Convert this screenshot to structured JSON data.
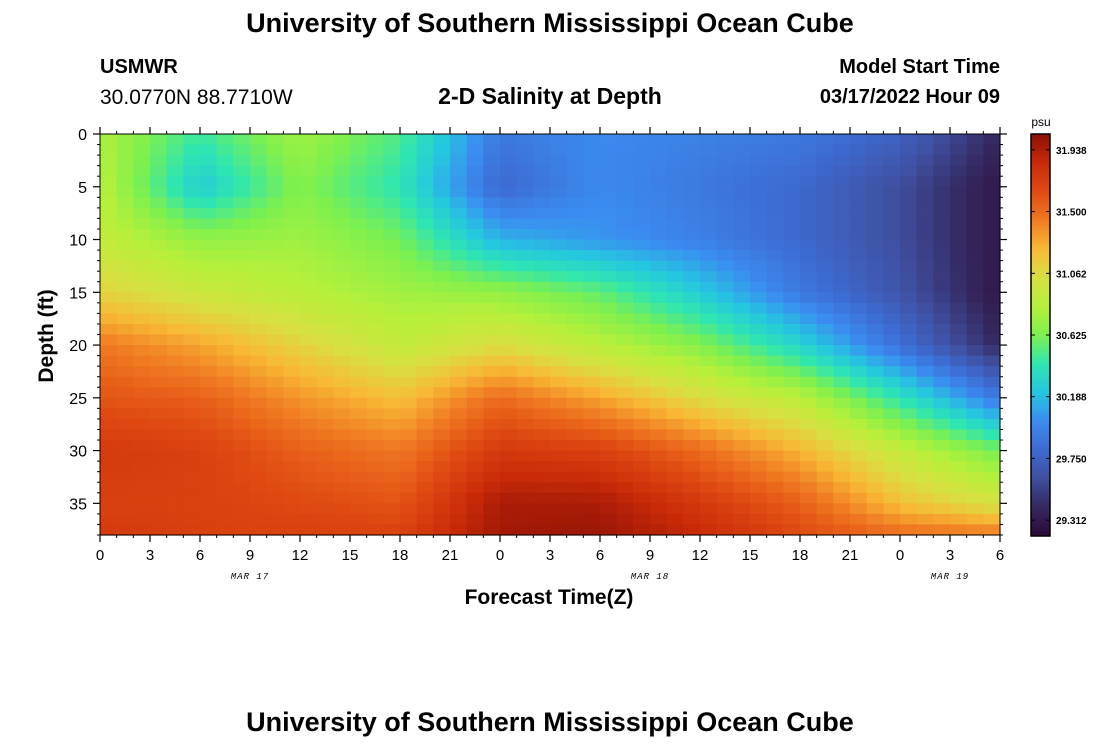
{
  "header": {
    "title_top": "University of Southern Mississippi Ocean Cube",
    "station_code": "USMWR",
    "station_coords": "30.0770N  88.7710W",
    "plot_title": "2-D Salinity at Depth",
    "model_start_label": "Model Start Time",
    "model_start_value": "03/17/2022 Hour 09"
  },
  "footer": {
    "title_bottom": "University of Southern Mississippi Ocean Cube"
  },
  "chart_data": {
    "type": "heatmap",
    "xlabel": "Forecast Time(Z)",
    "ylabel": "Depth (ft)",
    "x_ticks": [
      "0",
      "3",
      "6",
      "9",
      "12",
      "15",
      "18",
      "21",
      "0",
      "3",
      "6",
      "9",
      "12",
      "15",
      "18",
      "21",
      "0",
      "3",
      "6"
    ],
    "x_range_hours": [
      0,
      54
    ],
    "y_ticks": [
      0,
      5,
      10,
      15,
      20,
      25,
      30,
      35
    ],
    "y_range_ft": [
      0,
      38
    ],
    "date_labels": [
      {
        "label": "MAR 17",
        "hour": 9
      },
      {
        "label": "MAR 18",
        "hour": 33
      },
      {
        "label": "MAR 19",
        "hour": 51
      }
    ],
    "colorbar": {
      "unit": "psu",
      "min": 29.2,
      "max": 32.05,
      "tick_labels": [
        "31.938",
        "31.500",
        "31.062",
        "30.625",
        "30.188",
        "29.750",
        "29.312"
      ]
    },
    "colors": [
      "#2a0a3a",
      "#34275e",
      "#3f4f9f",
      "#3d6ad0",
      "#3b8cf0",
      "#25c6e0",
      "#2fe6b0",
      "#7df04e",
      "#b6f03a",
      "#d8e040",
      "#f8b936",
      "#f07a22",
      "#e04a12",
      "#c82a08",
      "#8c1006"
    ],
    "salinity_grid": {
      "x_hours": [
        0,
        6,
        12,
        18,
        24,
        30,
        36,
        42,
        48,
        54
      ],
      "depth_ft": [
        0,
        5,
        10,
        15,
        20,
        25,
        30,
        35,
        38
      ],
      "values_psu": [
        [
          30.8,
          30.45,
          30.75,
          30.5,
          29.9,
          30.0,
          29.95,
          29.9,
          29.75,
          29.4
        ],
        [
          30.85,
          30.25,
          30.65,
          30.4,
          29.8,
          30.0,
          29.9,
          29.8,
          29.6,
          29.3
        ],
        [
          30.9,
          30.7,
          30.75,
          30.6,
          30.15,
          30.05,
          29.95,
          29.8,
          29.6,
          29.3
        ],
        [
          31.1,
          30.95,
          30.85,
          30.75,
          30.7,
          30.55,
          30.25,
          29.9,
          29.65,
          29.3
        ],
        [
          31.45,
          31.3,
          31.1,
          30.9,
          31.05,
          30.85,
          30.65,
          30.3,
          29.85,
          29.4
        ],
        [
          31.6,
          31.55,
          31.35,
          31.2,
          31.5,
          31.3,
          31.05,
          30.85,
          30.4,
          29.9
        ],
        [
          31.75,
          31.7,
          31.55,
          31.45,
          31.75,
          31.7,
          31.5,
          31.25,
          30.9,
          30.6
        ],
        [
          31.7,
          31.7,
          31.65,
          31.6,
          31.95,
          31.95,
          31.75,
          31.55,
          31.2,
          31.0
        ],
        [
          31.75,
          31.7,
          31.7,
          31.7,
          31.98,
          32.0,
          31.85,
          31.65,
          31.5,
          31.45
        ]
      ]
    }
  }
}
